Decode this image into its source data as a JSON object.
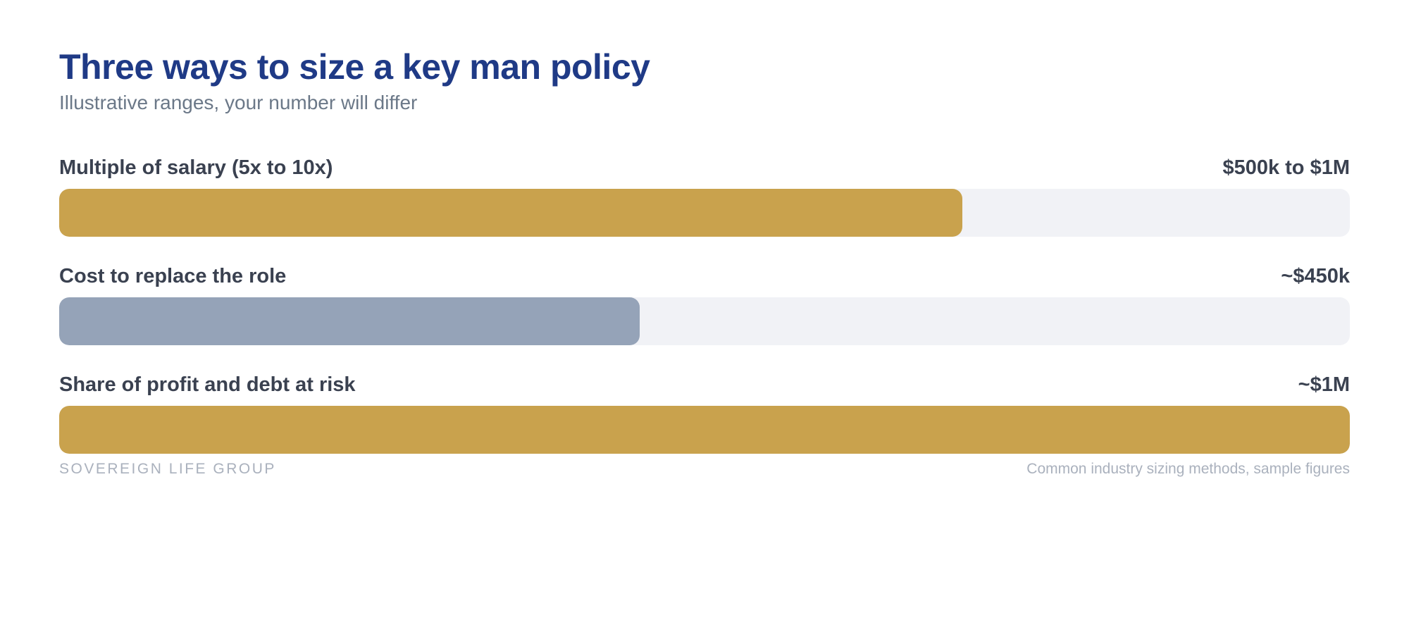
{
  "chart_data": {
    "type": "bar",
    "orientation": "horizontal",
    "title": "Three ways to size a key man policy",
    "subtitle": "Illustrative ranges, your number will differ",
    "categories": [
      "Multiple of salary (5x to 10x)",
      "Cost to replace the role",
      "Share of profit and debt at risk"
    ],
    "value_labels": [
      "$500k to $1M",
      "~$450k",
      "~$1M"
    ],
    "values": [
      0.7,
      0.45,
      1.0
    ],
    "value_scale": "fraction of track filled",
    "bar_colors": [
      "#c9a24d",
      "#95a3b8",
      "#c9a24d"
    ],
    "track_color": "#f1f2f6",
    "grid": false,
    "legend": "none"
  },
  "colors": {
    "title": "#1f3a86",
    "subtitle": "#6b7888",
    "label": "#3a4150",
    "footer": "#aab1bd"
  },
  "footer": {
    "brand": "SOVEREIGN LIFE GROUP",
    "note": "Common industry sizing methods, sample figures"
  }
}
